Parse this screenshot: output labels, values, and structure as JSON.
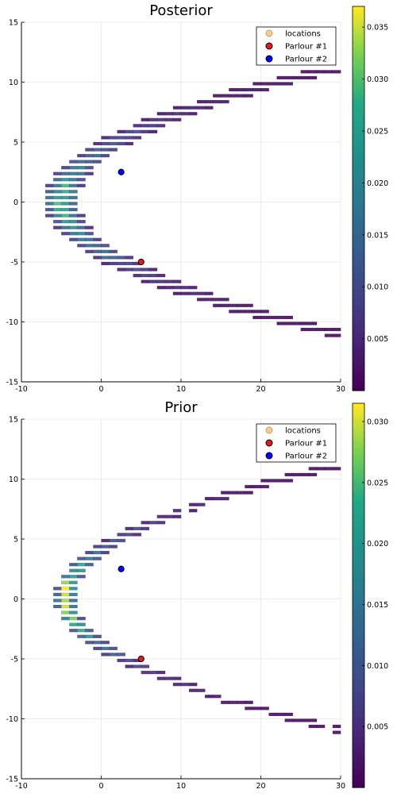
{
  "chart_data": [
    {
      "type": "heatmap",
      "title": "Posterior",
      "xlim": [
        -10,
        30
      ],
      "ylim": [
        -15,
        15
      ],
      "xticks": [
        "-10",
        "0",
        "10",
        "20",
        "30"
      ],
      "yticks": [
        "-15",
        "-10",
        "-5",
        "0",
        "5",
        "10",
        "15"
      ],
      "grid": true,
      "legend_position": "top-right",
      "legend": [
        {
          "label": "locations",
          "color": "#f6c98f",
          "edge": "#c9a06e",
          "marker": "circle"
        },
        {
          "label": "Parlour #1",
          "color": "#e41a1c",
          "edge": "#000000",
          "marker": "circle"
        },
        {
          "label": "Parlour #2",
          "color": "#0000ff",
          "edge": "#000000",
          "marker": "circle"
        }
      ],
      "colorbar": {
        "colormap": "viridis",
        "min": 0,
        "max": 0.037,
        "ticks": [
          "0.005",
          "0.010",
          "0.015",
          "0.020",
          "0.025",
          "0.030",
          "0.035"
        ],
        "tick_values": [
          0.005,
          0.01,
          0.015,
          0.02,
          0.025,
          0.03,
          0.035
        ]
      },
      "density_curve": {
        "description": "parabola x = a*y^2 + b",
        "x_vertex": -5,
        "a": 0.28
      },
      "markers": {
        "parlour_1": {
          "x": 5,
          "y": -5
        },
        "parlour_2": {
          "x": 2.5,
          "y": 2.5
        }
      },
      "max_density": 0.037
    },
    {
      "type": "heatmap",
      "title": "Prior",
      "xlim": [
        -10,
        30
      ],
      "ylim": [
        -15,
        15
      ],
      "xticks": [
        "-10",
        "0",
        "10",
        "20",
        "30"
      ],
      "yticks": [
        "-15",
        "-10",
        "-5",
        "0",
        "5",
        "10",
        "15"
      ],
      "grid": true,
      "legend_position": "top-right",
      "legend": [
        {
          "label": "locations",
          "color": "#f6c98f",
          "edge": "#c9a06e",
          "marker": "circle"
        },
        {
          "label": "Parlour #1",
          "color": "#e41a1c",
          "edge": "#000000",
          "marker": "circle"
        },
        {
          "label": "Parlour #2",
          "color": "#0000ff",
          "edge": "#000000",
          "marker": "circle"
        }
      ],
      "colorbar": {
        "colormap": "viridis",
        "min": 0,
        "max": 0.0315,
        "ticks": [
          "0.005",
          "0.010",
          "0.015",
          "0.020",
          "0.025",
          "0.030"
        ],
        "tick_values": [
          0.005,
          0.01,
          0.015,
          0.02,
          0.025,
          0.03
        ]
      },
      "density_curve": {
        "description": "parabola x = a*y^2 + b",
        "x_vertex": -4.5,
        "a": 0.28
      },
      "markers": {
        "parlour_1": {
          "x": 5,
          "y": -5
        },
        "parlour_2": {
          "x": 2.5,
          "y": 2.5
        }
      },
      "max_density": 0.0315
    }
  ]
}
